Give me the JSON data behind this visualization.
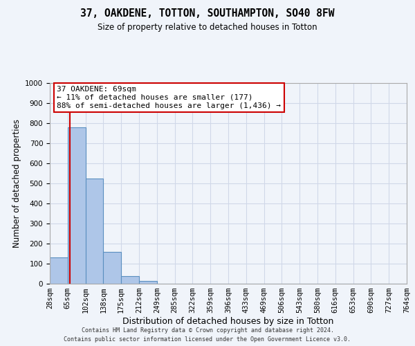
{
  "title1": "37, OAKDENE, TOTTON, SOUTHAMPTON, SO40 8FW",
  "title2": "Size of property relative to detached houses in Totton",
  "xlabel": "Distribution of detached houses by size in Totton",
  "ylabel": "Number of detached properties",
  "footer1": "Contains HM Land Registry data © Crown copyright and database right 2024.",
  "footer2": "Contains public sector information licensed under the Open Government Licence v3.0.",
  "bin_labels": [
    "28sqm",
    "65sqm",
    "102sqm",
    "138sqm",
    "175sqm",
    "212sqm",
    "249sqm",
    "285sqm",
    "322sqm",
    "359sqm",
    "396sqm",
    "433sqm",
    "469sqm",
    "506sqm",
    "543sqm",
    "580sqm",
    "616sqm",
    "653sqm",
    "690sqm",
    "727sqm",
    "764sqm"
  ],
  "bar_values": [
    130,
    780,
    525,
    160,
    37,
    15,
    0,
    0,
    0,
    0,
    0,
    0,
    0,
    0,
    0,
    0,
    0,
    0,
    0,
    0
  ],
  "bar_color": "#aec6e8",
  "bar_edge_color": "#5a8fc0",
  "grid_color": "#d0d8e8",
  "vline_x": 1.14,
  "vline_color": "#cc0000",
  "ylim": [
    0,
    1000
  ],
  "yticks": [
    0,
    100,
    200,
    300,
    400,
    500,
    600,
    700,
    800,
    900,
    1000
  ],
  "annotation_text": "37 OAKDENE: 69sqm\n← 11% of detached houses are smaller (177)\n88% of semi-detached houses are larger (1,436) →",
  "annotation_box_color": "#ffffff",
  "annotation_box_edge": "#cc0000",
  "background_color": "#f0f4fa",
  "title1_fontsize": 10.5,
  "title2_fontsize": 8.5,
  "ylabel_fontsize": 8.5,
  "xlabel_fontsize": 9,
  "tick_fontsize": 7.5,
  "footer_fontsize": 6.0,
  "ann_fontsize": 8.0
}
